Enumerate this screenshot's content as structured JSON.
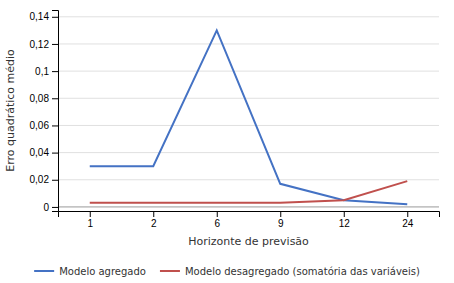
{
  "chart_data": {
    "type": "line",
    "categories": [
      "1",
      "2",
      "6",
      "9",
      "12",
      "24"
    ],
    "series": [
      {
        "name": "Modelo agregado",
        "color": "#4472C4",
        "values": [
          0.03,
          0.03,
          0.13,
          0.017,
          0.005,
          0.002
        ]
      },
      {
        "name": "Modelo desagregado (somatória das variáveis)",
        "color": "#C0504D",
        "values": [
          0.003,
          0.003,
          0.003,
          0.003,
          0.005,
          0.019
        ]
      }
    ],
    "xlabel": "Horizonte de previsão",
    "ylabel": "Erro quadrático médio",
    "ylim": [
      -0.003,
      0.145
    ],
    "yticks": [
      0,
      {
        "value": 0.02,
        "label": "0,02"
      },
      {
        "value": 0.04,
        "label": "0,04"
      },
      {
        "value": 0.06,
        "label": "0,06"
      },
      {
        "value": 0.08,
        "label": "0,08"
      },
      {
        "value": 0.1,
        "label": "0,1"
      },
      {
        "value": 0.12,
        "label": "0,12"
      },
      {
        "value": 0.14,
        "label": "0,14"
      }
    ],
    "grid": true,
    "legend": "bottom"
  }
}
